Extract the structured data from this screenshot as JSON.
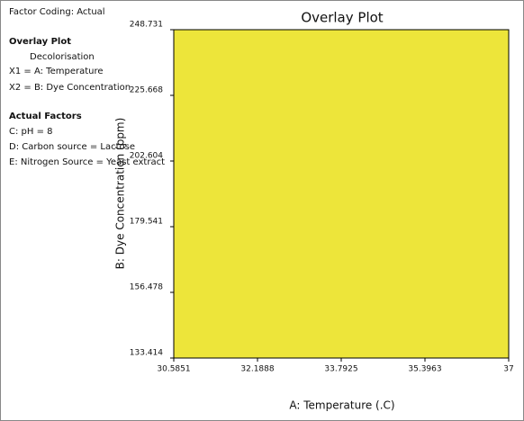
{
  "chart_data": {
    "type": "overlay",
    "title": "Overlay Plot",
    "x_label": "A: Temperature (.C)",
    "y_label": "B: Dye Concentration (ppm)",
    "xlim": [
      30.5851,
      37
    ],
    "xticks": [
      30.5851,
      32.1888,
      33.7925,
      35.3963,
      37
    ],
    "ylim": [
      133.414,
      248.731
    ],
    "yticks": [
      133.414,
      156.478,
      179.541,
      202.604,
      225.668,
      248.731
    ],
    "x": [
      30.5851,
      37,
      37,
      30.5851
    ],
    "values": [
      133.414,
      133.414,
      248.731,
      248.731
    ],
    "color": "#ede53a",
    "info_panel": [
      {
        "text": "Factor Coding: Actual",
        "bold": false,
        "indent": false
      },
      {
        "text": "Overlay Plot",
        "bold": true,
        "indent": false
      },
      {
        "text": "Decolorisation",
        "bold": false,
        "indent": true
      },
      {
        "text": "X1 = A: Temperature",
        "bold": false,
        "indent": false
      },
      {
        "text": "X2 = B: Dye Concentration",
        "bold": false,
        "indent": false
      },
      {
        "text": "Actual Factors",
        "bold": true,
        "indent": false
      },
      {
        "text": "C: pH = 8",
        "bold": false,
        "indent": false
      },
      {
        "text": "D: Carbon source = Lactose",
        "bold": false,
        "indent": false
      },
      {
        "text": "E: Nitrogen Source = Yeast extract",
        "bold": false,
        "indent": false
      }
    ]
  }
}
